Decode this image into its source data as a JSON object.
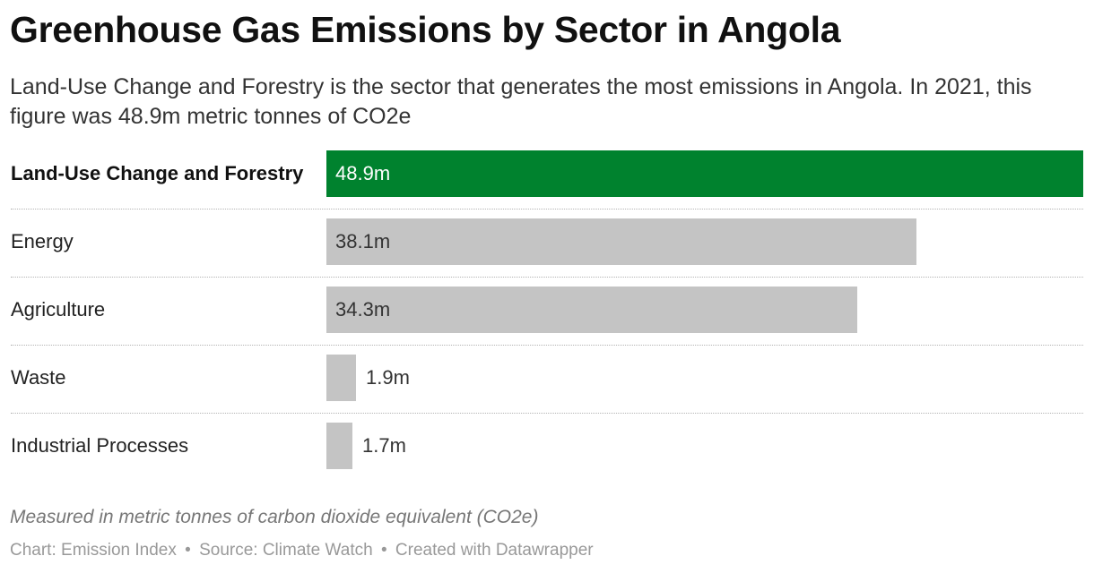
{
  "title": "Greenhouse Gas Emissions by Sector in Angola",
  "subtitle": "Land-Use Change and Forestry is the sector that generates the most emissions in Angola. In 2021, this figure was 48.9m metric tonnes of CO2e",
  "notes": "Measured in metric tonnes of carbon dioxide equivalent (CO2e)",
  "byline": {
    "chart": "Chart: Emission Index",
    "source": "Source: Climate Watch",
    "created": "Created with Datawrapper",
    "separator": "•"
  },
  "colors": {
    "highlight": "#00822e",
    "default_bar": "#c4c4c4",
    "highlight_text": "#ffffff",
    "default_text": "#333333"
  },
  "chart_data": {
    "type": "bar",
    "orientation": "horizontal",
    "categories": [
      "Land-Use Change and Forestry",
      "Energy",
      "Agriculture",
      "Waste",
      "Industrial Processes"
    ],
    "values": [
      48.9,
      38.1,
      34.3,
      1.9,
      1.7
    ],
    "value_labels": [
      "48.9m",
      "38.1m",
      "34.3m",
      "1.9m",
      "1.7m"
    ],
    "highlighted": [
      true,
      false,
      false,
      false,
      false
    ],
    "xlim": [
      0,
      48.9
    ],
    "unit": "m"
  }
}
